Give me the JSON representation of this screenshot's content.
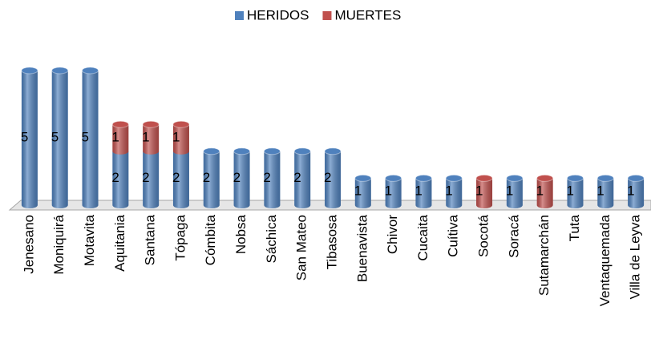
{
  "chart_data": {
    "type": "bar",
    "stacked": true,
    "categories": [
      "Jenesano",
      "Moniquirá",
      "Motavita",
      "Aquitania",
      "Santana",
      "Tópaga",
      "Cómbita",
      "Nobsa",
      "Sáchica",
      "San Mateo",
      "Tibasosa",
      "Buenavista",
      "Chivor",
      "Cucaita",
      "Cuítiva",
      "Socotá",
      "Soracá",
      "Sutamarchán",
      "Tuta",
      "Ventaquemada",
      "Villa de Leyva"
    ],
    "series": [
      {
        "name": "HERIDOS",
        "color": "#4f81bd",
        "values": [
          5,
          5,
          5,
          2,
          2,
          2,
          2,
          2,
          2,
          2,
          2,
          1,
          1,
          1,
          1,
          null,
          1,
          null,
          1,
          1,
          1
        ]
      },
      {
        "name": "MUERTES",
        "color": "#c0504d",
        "values": [
          null,
          null,
          null,
          1,
          1,
          1,
          null,
          null,
          null,
          null,
          null,
          null,
          null,
          null,
          null,
          1,
          null,
          1,
          null,
          null,
          null
        ]
      }
    ],
    "legend": "top"
  }
}
